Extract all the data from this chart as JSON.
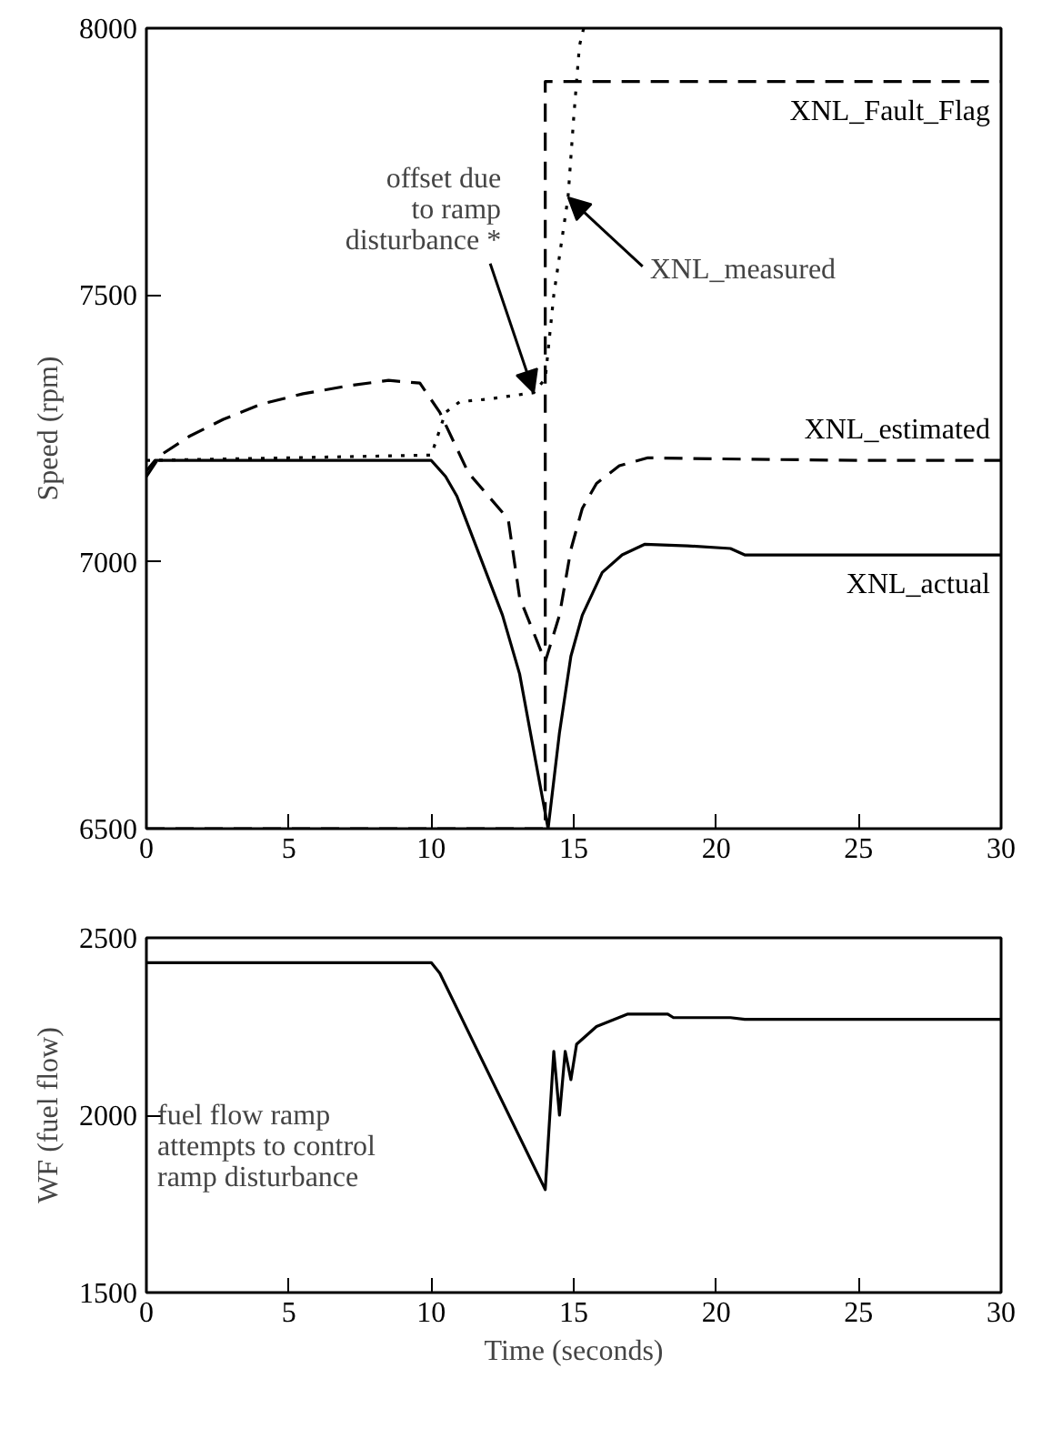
{
  "chart_data": [
    {
      "type": "line",
      "ylabel": "Speed (rpm)",
      "xlim": [
        0,
        30
      ],
      "xticks": [
        0,
        5,
        10,
        15,
        20,
        25,
        30
      ],
      "ylim": [
        6500,
        8000
      ],
      "yticks": [
        6500,
        7000,
        7500,
        8000
      ],
      "grid": false,
      "series": [
        {
          "name": "XNL_Fault_Flag",
          "color": "#000000",
          "line_style": "dashed",
          "x": [
            0,
            14.0,
            14.0,
            30
          ],
          "values": [
            6500,
            6500,
            7900,
            7900
          ]
        },
        {
          "color": "#000000",
          "line_style": "dotted",
          "x": [
            0,
            10.0,
            10.5,
            11.0,
            12.0,
            13.6,
            14.0,
            14.3,
            14.8,
            15.0,
            15.2,
            15.35
          ],
          "values": [
            7190,
            7200,
            7280,
            7300,
            7305,
            7317,
            7343,
            7500,
            7683,
            7833,
            7967,
            8000
          ]
        },
        {
          "name": "XNL_estimated",
          "color": "#000000",
          "line_style": "dashed",
          "x": [
            0,
            0.5,
            1.5,
            2.7,
            4.0,
            5.5,
            7.1,
            8.5,
            9.6,
            10.3,
            11.3,
            12.7,
            13.1,
            14.0,
            14.5,
            14.9,
            15.3,
            15.8,
            16.6,
            17.6,
            20,
            25,
            30
          ],
          "values": [
            7160,
            7200,
            7235,
            7267,
            7295,
            7315,
            7330,
            7340,
            7335,
            7280,
            7167,
            7080,
            6933,
            6813,
            6900,
            7023,
            7100,
            7147,
            7180,
            7195,
            7193,
            7190,
            7190
          ]
        },
        {
          "name": "XNL_actual",
          "color": "#000000",
          "line_style": "solid",
          "x": [
            0,
            0.3,
            10.0,
            10.5,
            10.9,
            12.5,
            13.1,
            14.1,
            14.5,
            14.9,
            15.3,
            16.0,
            16.7,
            17.5,
            19.0,
            20.5,
            21.0,
            30
          ],
          "values": [
            7170,
            7190,
            7190,
            7160,
            7123,
            6900,
            6790,
            6500,
            6680,
            6823,
            6900,
            6980,
            7013,
            7033,
            7030,
            7025,
            7013,
            7013
          ]
        }
      ],
      "annotations": [
        {
          "text": "offset due\nto ramp\ndisturbance *",
          "x": 13.6,
          "y": 7317
        },
        {
          "text": "XNL_measured",
          "x": 14.8,
          "y": 7683
        }
      ]
    },
    {
      "type": "line",
      "xlabel": "Time (seconds)",
      "ylabel": "WF (fuel flow)",
      "xlim": [
        0,
        30
      ],
      "xticks": [
        0,
        5,
        10,
        15,
        20,
        25,
        30
      ],
      "ylim": [
        1500,
        2500
      ],
      "yticks": [
        1500,
        2000,
        2500
      ],
      "grid": false,
      "series": [
        {
          "color": "#000000",
          "line_style": "solid",
          "x": [
            0,
            10.0,
            10.3,
            14.0,
            14.3,
            14.5,
            14.7,
            14.9,
            15.1,
            15.8,
            16.9,
            18.3,
            18.5,
            20.5,
            21.0,
            30
          ],
          "values": [
            2430,
            2430,
            2400,
            1790,
            2180,
            2000,
            2180,
            2100,
            2200,
            2250,
            2285,
            2285,
            2275,
            2275,
            2270,
            2270
          ]
        }
      ],
      "annotations": [
        "fuel flow ramp\nattempts to control\nramp disturbance"
      ]
    }
  ]
}
